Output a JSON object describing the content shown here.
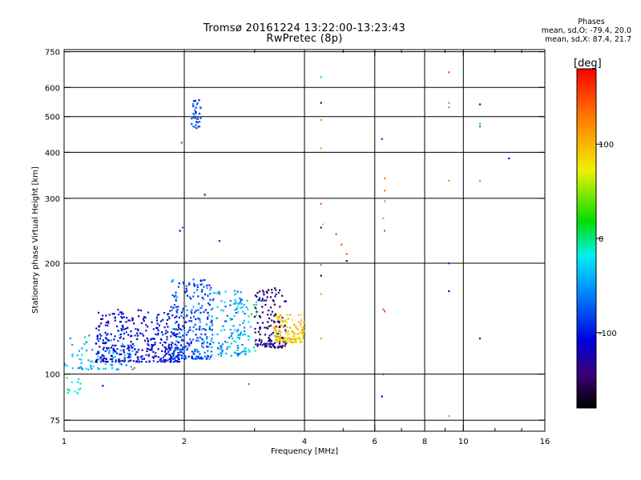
{
  "chart_data": {
    "type": "scatter",
    "title": "Tromsø 20161224 13:22:00-13:23:43",
    "subtitle": "RwPretec (8p)",
    "xlabel": "Frequency [MHz]",
    "ylabel": "Stationary phase Virtual Height [km]",
    "x_scale": "log",
    "y_scale": "log",
    "xlim": [
      1,
      16
    ],
    "ylim": [
      70,
      760
    ],
    "x_ticks": [
      1,
      2,
      4,
      6,
      8,
      10,
      16
    ],
    "x_tick_labels": [
      "1",
      "2",
      "4",
      "6",
      "8",
      "10",
      "16"
    ],
    "y_ticks": [
      75,
      100,
      200,
      300,
      400,
      500,
      600,
      750
    ],
    "y_tick_labels": [
      "75",
      "100",
      "200",
      "300",
      "400",
      "500",
      "600",
      "750"
    ],
    "grid": true,
    "colorbar": {
      "label": "[deg]",
      "range": [
        -180,
        180
      ],
      "tick_values": [
        100,
        0,
        -100
      ],
      "tick_labels": [
        "100",
        "0",
        "-100"
      ]
    },
    "phase_info": {
      "heading": "Phases",
      "line1": "mean, sd,O: -79.4, 20.0",
      "line2": "mean, sd,X:  87.4, 21.7"
    },
    "echo_clusters": [
      {
        "f_range": [
          1.0,
          1.1
        ],
        "h_range": [
          88,
          100
        ],
        "phase_range": [
          -30,
          0
        ],
        "count": 14
      },
      {
        "f_range": [
          1.0,
          1.5
        ],
        "h_range": [
          103,
          128
        ],
        "phase_range": [
          -65,
          -20
        ],
        "count": 90
      },
      {
        "f_range": [
          1.2,
          2.0
        ],
        "h_range": [
          108,
          150
        ],
        "phase_range": [
          -130,
          -85
        ],
        "count": 380
      },
      {
        "f_range": [
          1.85,
          2.35
        ],
        "h_range": [
          110,
          182
        ],
        "phase_range": [
          -115,
          -40
        ],
        "count": 260
      },
      {
        "f_range": [
          2.3,
          2.85
        ],
        "h_range": [
          112,
          170
        ],
        "phase_range": [
          -80,
          -20
        ],
        "count": 120
      },
      {
        "f_range": [
          2.6,
          3.05
        ],
        "h_range": [
          115,
          162
        ],
        "phase_range": [
          -50,
          10
        ],
        "count": 45
      },
      {
        "f_range": [
          3.0,
          3.6
        ],
        "h_range": [
          118,
          172
        ],
        "phase_range": [
          -175,
          -110
        ],
        "count": 150
      },
      {
        "f_range": [
          3.35,
          4.0
        ],
        "h_range": [
          122,
          145
        ],
        "phase_range": [
          60,
          115
        ],
        "count": 130
      },
      {
        "f_range": [
          2.08,
          2.2
        ],
        "h_range": [
          465,
          555
        ],
        "phase_range": [
          -120,
          -40
        ],
        "count": 35
      }
    ],
    "points": [
      {
        "f": 1.95,
        "h": 245,
        "phase": -110
      },
      {
        "f": 1.98,
        "h": 250,
        "phase": -60
      },
      {
        "f": 2.25,
        "h": 307,
        "phase": -120
      },
      {
        "f": 2.45,
        "h": 230,
        "phase": -90
      },
      {
        "f": 1.97,
        "h": 425,
        "phase": -60
      },
      {
        "f": 1.25,
        "h": 93,
        "phase": -110
      },
      {
        "f": 1.5,
        "h": 104,
        "phase": 140
      },
      {
        "f": 2.9,
        "h": 94,
        "phase": 150
      },
      {
        "f": 4.4,
        "h": 640,
        "phase": -30
      },
      {
        "f": 4.4,
        "h": 545,
        "phase": -150
      },
      {
        "f": 4.4,
        "h": 490,
        "phase": 120
      },
      {
        "f": 4.4,
        "h": 410,
        "phase": 110
      },
      {
        "f": 4.4,
        "h": 290,
        "phase": 140
      },
      {
        "f": 4.4,
        "h": 250,
        "phase": -140
      },
      {
        "f": 4.45,
        "h": 255,
        "phase": 90
      },
      {
        "f": 4.4,
        "h": 198,
        "phase": 130
      },
      {
        "f": 4.4,
        "h": 185,
        "phase": -160
      },
      {
        "f": 4.4,
        "h": 165,
        "phase": 110
      },
      {
        "f": 4.4,
        "h": 125,
        "phase": 120
      },
      {
        "f": 4.8,
        "h": 240,
        "phase": 150
      },
      {
        "f": 4.95,
        "h": 225,
        "phase": 140
      },
      {
        "f": 5.1,
        "h": 212,
        "phase": 140
      },
      {
        "f": 5.1,
        "h": 203,
        "phase": -160
      },
      {
        "f": 6.25,
        "h": 435,
        "phase": -90
      },
      {
        "f": 6.35,
        "h": 340,
        "phase": 130
      },
      {
        "f": 6.35,
        "h": 315,
        "phase": 135
      },
      {
        "f": 6.35,
        "h": 295,
        "phase": 120
      },
      {
        "f": 6.3,
        "h": 265,
        "phase": 110
      },
      {
        "f": 6.35,
        "h": 245,
        "phase": 140
      },
      {
        "f": 6.3,
        "h": 150,
        "phase": 140
      },
      {
        "f": 6.35,
        "h": 148,
        "phase": 150
      },
      {
        "f": 6.3,
        "h": 100,
        "phase": -80
      },
      {
        "f": 6.25,
        "h": 87,
        "phase": -110
      },
      {
        "f": 9.2,
        "h": 660,
        "phase": 150
      },
      {
        "f": 9.2,
        "h": 545,
        "phase": -30
      },
      {
        "f": 9.2,
        "h": 530,
        "phase": 120
      },
      {
        "f": 9.2,
        "h": 335,
        "phase": 115
      },
      {
        "f": 9.2,
        "h": 200,
        "phase": -90
      },
      {
        "f": 9.2,
        "h": 168,
        "phase": -120
      },
      {
        "f": 9.2,
        "h": 77,
        "phase": 110
      },
      {
        "f": 11.0,
        "h": 540,
        "phase": -110
      },
      {
        "f": 11.0,
        "h": 470,
        "phase": -60
      },
      {
        "f": 11.0,
        "h": 478,
        "phase": -30
      },
      {
        "f": 11.0,
        "h": 335,
        "phase": 130
      },
      {
        "f": 11.0,
        "h": 125,
        "phase": -110
      },
      {
        "f": 13.0,
        "h": 385,
        "phase": -110
      }
    ]
  }
}
